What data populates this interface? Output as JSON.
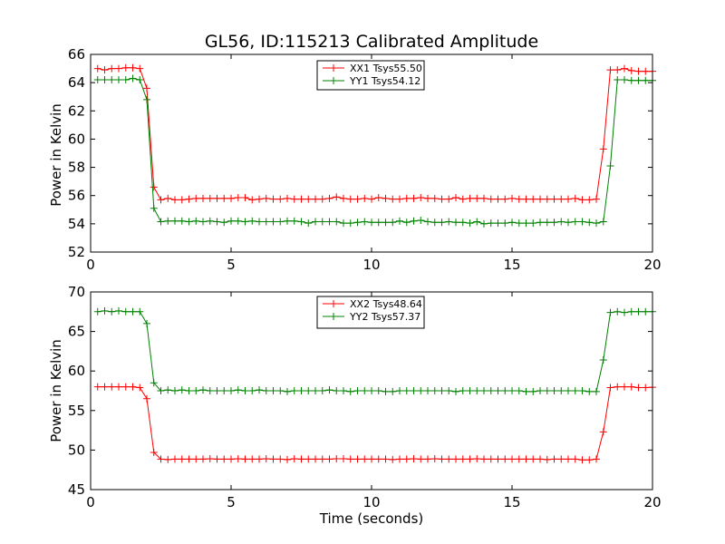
{
  "chart_data": [
    {
      "type": "line",
      "title": "GL56, ID:115213 Calibrated Amplitude",
      "xlabel": "",
      "ylabel": "Power in Kelvin",
      "xlim": [
        0,
        20
      ],
      "ylim": [
        52,
        66
      ],
      "xticks": [
        0,
        5,
        10,
        15,
        20
      ],
      "yticks": [
        52,
        54,
        56,
        58,
        60,
        62,
        64,
        66
      ],
      "legend_position": "top-center",
      "series": [
        {
          "name": "XX1 Tsys55.50",
          "color": "#ff0000",
          "x": [
            0.25,
            0.5,
            0.75,
            1.0,
            1.25,
            1.5,
            1.75,
            2.0,
            2.25,
            2.5,
            2.75,
            3.0,
            3.25,
            3.5,
            3.75,
            4.0,
            4.25,
            4.5,
            4.75,
            5.0,
            5.25,
            5.5,
            5.75,
            6.0,
            6.25,
            6.5,
            6.75,
            7.0,
            7.25,
            7.5,
            7.75,
            8.0,
            8.25,
            8.5,
            8.75,
            9.0,
            9.25,
            9.5,
            9.75,
            10.0,
            10.25,
            10.5,
            10.75,
            11.0,
            11.25,
            11.5,
            11.75,
            12.0,
            12.25,
            12.5,
            12.75,
            13.0,
            13.25,
            13.5,
            13.75,
            14.0,
            14.25,
            14.5,
            14.75,
            15.0,
            15.25,
            15.5,
            15.75,
            16.0,
            16.25,
            16.5,
            16.75,
            17.0,
            17.25,
            17.5,
            17.75,
            18.0,
            18.25,
            18.5,
            18.75,
            19.0,
            19.25,
            19.5,
            19.75,
            20.0
          ],
          "y": [
            65.0,
            64.9,
            65.0,
            65.0,
            65.05,
            65.05,
            65.0,
            63.6,
            56.6,
            55.7,
            55.8,
            55.7,
            55.7,
            55.75,
            55.8,
            55.8,
            55.8,
            55.8,
            55.8,
            55.8,
            55.85,
            55.85,
            55.7,
            55.75,
            55.8,
            55.75,
            55.75,
            55.8,
            55.75,
            55.75,
            55.75,
            55.75,
            55.75,
            55.8,
            55.9,
            55.8,
            55.75,
            55.75,
            55.8,
            55.75,
            55.85,
            55.8,
            55.75,
            55.75,
            55.8,
            55.8,
            55.85,
            55.8,
            55.8,
            55.75,
            55.75,
            55.85,
            55.75,
            55.8,
            55.8,
            55.8,
            55.75,
            55.75,
            55.75,
            55.8,
            55.75,
            55.75,
            55.75,
            55.75,
            55.75,
            55.75,
            55.75,
            55.75,
            55.8,
            55.7,
            55.7,
            55.75,
            59.3,
            64.9,
            64.9,
            65.0,
            64.85,
            64.8,
            64.8,
            64.8
          ]
        },
        {
          "name": "YY1 Tsys54.12",
          "color": "#008000",
          "x": [
            0.25,
            0.5,
            0.75,
            1.0,
            1.25,
            1.5,
            1.75,
            2.0,
            2.25,
            2.5,
            2.75,
            3.0,
            3.25,
            3.5,
            3.75,
            4.0,
            4.25,
            4.5,
            4.75,
            5.0,
            5.25,
            5.5,
            5.75,
            6.0,
            6.25,
            6.5,
            6.75,
            7.0,
            7.25,
            7.5,
            7.75,
            8.0,
            8.25,
            8.5,
            8.75,
            9.0,
            9.25,
            9.5,
            9.75,
            10.0,
            10.25,
            10.5,
            10.75,
            11.0,
            11.25,
            11.5,
            11.75,
            12.0,
            12.25,
            12.5,
            12.75,
            13.0,
            13.25,
            13.5,
            13.75,
            14.0,
            14.25,
            14.5,
            14.75,
            15.0,
            15.25,
            15.5,
            15.75,
            16.0,
            16.25,
            16.5,
            16.75,
            17.0,
            17.25,
            17.5,
            17.75,
            18.0,
            18.25,
            18.5,
            18.75,
            19.0,
            19.25,
            19.5,
            19.75,
            20.0
          ],
          "y": [
            64.2,
            64.2,
            64.2,
            64.2,
            64.2,
            64.3,
            64.2,
            62.8,
            55.1,
            54.15,
            54.2,
            54.2,
            54.2,
            54.15,
            54.2,
            54.15,
            54.2,
            54.15,
            54.1,
            54.2,
            54.2,
            54.15,
            54.2,
            54.15,
            54.15,
            54.15,
            54.15,
            54.2,
            54.2,
            54.15,
            54.05,
            54.15,
            54.15,
            54.15,
            54.15,
            54.05,
            54.05,
            54.1,
            54.15,
            54.1,
            54.1,
            54.1,
            54.1,
            54.2,
            54.1,
            54.2,
            54.25,
            54.15,
            54.1,
            54.1,
            54.15,
            54.1,
            54.1,
            54.05,
            54.15,
            54.0,
            54.05,
            54.05,
            54.05,
            54.1,
            54.05,
            54.05,
            54.05,
            54.1,
            54.1,
            54.1,
            54.15,
            54.1,
            54.15,
            54.15,
            54.1,
            54.05,
            54.15,
            58.1,
            64.2,
            64.2,
            64.15,
            64.15,
            64.15,
            64.15
          ]
        }
      ]
    },
    {
      "type": "line",
      "title": "",
      "xlabel": "Time (seconds)",
      "ylabel": "Power in Kelvin",
      "xlim": [
        0,
        20
      ],
      "ylim": [
        45,
        70
      ],
      "xticks": [
        0,
        5,
        10,
        15,
        20
      ],
      "yticks": [
        45,
        50,
        55,
        60,
        65,
        70
      ],
      "legend_position": "top-center",
      "series": [
        {
          "name": "XX2 Tsys48.64",
          "color": "#ff0000",
          "x": [
            0.25,
            0.5,
            0.75,
            1.0,
            1.25,
            1.5,
            1.75,
            2.0,
            2.25,
            2.5,
            2.75,
            3.0,
            3.25,
            3.5,
            3.75,
            4.0,
            4.25,
            4.5,
            4.75,
            5.0,
            5.25,
            5.5,
            5.75,
            6.0,
            6.25,
            6.5,
            6.75,
            7.0,
            7.25,
            7.5,
            7.75,
            8.0,
            8.25,
            8.5,
            8.75,
            9.0,
            9.25,
            9.5,
            9.75,
            10.0,
            10.25,
            10.5,
            10.75,
            11.0,
            11.25,
            11.5,
            11.75,
            12.0,
            12.25,
            12.5,
            12.75,
            13.0,
            13.25,
            13.5,
            13.75,
            14.0,
            14.25,
            14.5,
            14.75,
            15.0,
            15.25,
            15.5,
            15.75,
            16.0,
            16.25,
            16.5,
            16.75,
            17.0,
            17.25,
            17.5,
            17.75,
            18.0,
            18.25,
            18.5,
            18.75,
            19.0,
            19.25,
            19.5,
            19.75,
            20.0
          ],
          "y": [
            58.0,
            58.0,
            58.0,
            58.0,
            58.0,
            58.0,
            57.9,
            56.5,
            49.7,
            48.85,
            48.8,
            48.85,
            48.85,
            48.85,
            48.85,
            48.85,
            48.9,
            48.85,
            48.85,
            48.85,
            48.9,
            48.85,
            48.85,
            48.85,
            48.9,
            48.85,
            48.85,
            48.8,
            48.9,
            48.85,
            48.85,
            48.85,
            48.85,
            48.85,
            48.9,
            48.9,
            48.85,
            48.85,
            48.85,
            48.85,
            48.85,
            48.85,
            48.8,
            48.85,
            48.85,
            48.9,
            48.85,
            48.85,
            48.9,
            48.85,
            48.85,
            48.85,
            48.85,
            48.85,
            48.9,
            48.85,
            48.85,
            48.85,
            48.85,
            48.85,
            48.85,
            48.85,
            48.85,
            48.85,
            48.8,
            48.85,
            48.85,
            48.85,
            48.85,
            48.75,
            48.75,
            48.85,
            52.3,
            57.9,
            58.0,
            58.0,
            58.0,
            57.9,
            57.9,
            57.95
          ]
        },
        {
          "name": "YY2 Tsys57.37",
          "color": "#008000",
          "x": [
            0.25,
            0.5,
            0.75,
            1.0,
            1.25,
            1.5,
            1.75,
            2.0,
            2.25,
            2.5,
            2.75,
            3.0,
            3.25,
            3.5,
            3.75,
            4.0,
            4.25,
            4.5,
            4.75,
            5.0,
            5.25,
            5.5,
            5.75,
            6.0,
            6.25,
            6.5,
            6.75,
            7.0,
            7.25,
            7.5,
            7.75,
            8.0,
            8.25,
            8.5,
            8.75,
            9.0,
            9.25,
            9.5,
            9.75,
            10.0,
            10.25,
            10.5,
            10.75,
            11.0,
            11.25,
            11.5,
            11.75,
            12.0,
            12.25,
            12.5,
            12.75,
            13.0,
            13.25,
            13.5,
            13.75,
            14.0,
            14.25,
            14.5,
            14.75,
            15.0,
            15.25,
            15.5,
            15.75,
            16.0,
            16.25,
            16.5,
            16.75,
            17.0,
            17.25,
            17.5,
            17.75,
            18.0,
            18.25,
            18.5,
            18.75,
            19.0,
            19.25,
            19.5,
            19.75,
            20.0
          ],
          "y": [
            67.5,
            67.6,
            67.5,
            67.6,
            67.5,
            67.5,
            67.5,
            66.0,
            58.5,
            57.5,
            57.6,
            57.5,
            57.6,
            57.5,
            57.5,
            57.6,
            57.5,
            57.5,
            57.5,
            57.5,
            57.6,
            57.5,
            57.5,
            57.6,
            57.5,
            57.5,
            57.5,
            57.4,
            57.5,
            57.5,
            57.5,
            57.5,
            57.5,
            57.6,
            57.5,
            57.5,
            57.4,
            57.5,
            57.5,
            57.5,
            57.5,
            57.4,
            57.4,
            57.5,
            57.5,
            57.5,
            57.5,
            57.5,
            57.5,
            57.5,
            57.5,
            57.4,
            57.5,
            57.5,
            57.5,
            57.5,
            57.5,
            57.5,
            57.5,
            57.5,
            57.5,
            57.4,
            57.4,
            57.5,
            57.5,
            57.5,
            57.5,
            57.5,
            57.5,
            57.5,
            57.4,
            57.4,
            61.4,
            67.4,
            67.5,
            67.4,
            67.5,
            67.5,
            67.5,
            67.5
          ]
        }
      ]
    }
  ]
}
